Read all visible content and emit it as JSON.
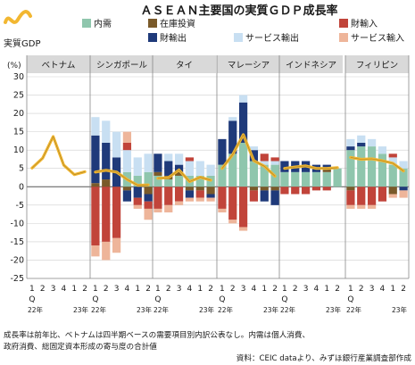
{
  "chart_data": {
    "type": "bar",
    "stacked": true,
    "title": "ＡＳＥＡＮ主要国の実質ＧＤＰ成長率",
    "ylabel": "(%)",
    "ylim": [
      -25,
      30
    ],
    "yticks": [
      30,
      25,
      20,
      15,
      10,
      5,
      0,
      -5,
      -10,
      -15,
      -20,
      -25
    ],
    "grid": true,
    "legend_position": "top",
    "line_legend": "実質GDP",
    "components": [
      {
        "key": "dom",
        "name": "内需",
        "color": "#8fc6ad"
      },
      {
        "key": "inv",
        "name": "在庫投資",
        "color": "#7a5a2a"
      },
      {
        "key": "gx",
        "name": "財輸出",
        "color": "#1f3a7a"
      },
      {
        "key": "sx",
        "name": "サービス輸出",
        "color": "#c8dff2"
      },
      {
        "key": "gm",
        "name": "財輸入",
        "color": "#c1443a"
      },
      {
        "key": "sm",
        "name": "サービス輸入",
        "color": "#eeb59a"
      }
    ],
    "gdp_color": "#f2b731",
    "x_tick_labels": [
      "1",
      "2",
      "3",
      "4",
      "1",
      "2"
    ],
    "x_sub_label": "Q",
    "x_years": [
      "22年",
      "23年"
    ],
    "panels": [
      {
        "country": "ベトナム",
        "gdp": [
          5.1,
          7.8,
          13.7,
          5.9,
          3.3,
          4.1
        ],
        "bars": null
      },
      {
        "country": "シンガポール",
        "gdp": [
          4.0,
          4.5,
          4.0,
          2.0,
          0.4,
          0.5
        ],
        "bars": [
          {
            "dom": 0,
            "inv": 1,
            "gx": 13,
            "sx": 5,
            "gm": -16,
            "sm": -3
          },
          {
            "dom": 0,
            "inv": 2,
            "gx": 10,
            "sx": 6,
            "gm": -15,
            "sm": -5
          },
          {
            "dom": 0,
            "inv": 0,
            "gx": 8,
            "sx": 7,
            "gm": -14,
            "sm": -4
          },
          {
            "dom": 4,
            "inv": -1,
            "gx": -3,
            "sx": 6,
            "gm": 2,
            "sm": 3
          },
          {
            "dom": 3,
            "inv": 0,
            "gx": -3,
            "sx": 5,
            "gm": -2,
            "sm": -1
          },
          {
            "dom": 4,
            "inv": -2,
            "gx": -2,
            "sx": 5,
            "gm": -2,
            "sm": -3
          }
        ]
      },
      {
        "country": "タイ",
        "gdp": [
          2.3,
          2.5,
          4.6,
          1.4,
          2.6,
          1.8
        ],
        "bars": [
          {
            "dom": 3,
            "inv": 1,
            "gx": 5,
            "sx": 0,
            "gm": -6,
            "sm": -1
          },
          {
            "dom": 2,
            "inv": 1,
            "gx": 4,
            "sx": 2,
            "gm": -5,
            "sm": -2
          },
          {
            "dom": 3,
            "inv": 1,
            "gx": 2,
            "sx": 3,
            "gm": -4,
            "sm": -1
          },
          {
            "dom": 3,
            "inv": -1,
            "gx": -2,
            "sx": 4,
            "gm": 1,
            "sm": -1
          },
          {
            "dom": 3,
            "inv": -1,
            "gx": 0,
            "sx": 4,
            "gm": -2,
            "sm": -1
          },
          {
            "dom": 3,
            "inv": -2,
            "gx": -1,
            "sx": 3,
            "gm": 0,
            "sm": -1
          }
        ]
      },
      {
        "country": "マレーシア",
        "gdp": [
          5.0,
          8.8,
          14.2,
          7.1,
          5.6,
          2.9
        ],
        "bars": [
          {
            "dom": 6,
            "inv": 0,
            "gx": 7,
            "sx": 0,
            "gm": -6,
            "sm": -1
          },
          {
            "dom": 9,
            "inv": 0,
            "gx": 9,
            "sx": 1,
            "gm": -9,
            "sm": -1
          },
          {
            "dom": 12,
            "inv": 0,
            "gx": 11,
            "sx": 2,
            "gm": -11,
            "sm": -1
          },
          {
            "dom": 7,
            "inv": -1,
            "gx": 3,
            "sx": 1,
            "gm": -3,
            "sm": 0
          },
          {
            "dom": 6,
            "inv": -1,
            "gx": -3,
            "sx": 1,
            "gm": 2,
            "sm": 0
          },
          {
            "dom": 6,
            "inv": -1,
            "gx": -4,
            "sx": 1,
            "gm": 1,
            "sm": 0
          }
        ]
      },
      {
        "country": "インドネシア",
        "gdp": [
          5.0,
          5.4,
          5.7,
          5.0,
          5.0,
          5.2
        ],
        "bars": [
          {
            "dom": 4,
            "inv": 0,
            "gx": 3,
            "sx": 0,
            "gm": -2,
            "sm": 0
          },
          {
            "dom": 4,
            "inv": 0,
            "gx": 3,
            "sx": 0,
            "gm": -2,
            "sm": 0
          },
          {
            "dom": 4,
            "inv": 0,
            "gx": 3,
            "sx": 0,
            "gm": -2,
            "sm": 0
          },
          {
            "dom": 4,
            "inv": 0,
            "gx": 2,
            "sx": 0,
            "gm": -1,
            "sm": 0
          },
          {
            "dom": 4,
            "inv": 1,
            "gx": 1,
            "sx": 0,
            "gm": -1,
            "sm": 0
          },
          {
            "dom": 5,
            "inv": 0,
            "gx": 0,
            "sx": 0,
            "gm": 0,
            "sm": 0
          }
        ]
      },
      {
        "country": "フィリピン",
        "gdp": [
          8.0,
          7.5,
          7.6,
          7.1,
          6.4,
          4.3
        ],
        "bars": [
          {
            "dom": 10,
            "inv": -1,
            "gx": 1,
            "sx": 2,
            "gm": -4,
            "sm": -1
          },
          {
            "dom": 11,
            "inv": 0,
            "gx": 1,
            "sx": 2,
            "gm": -5,
            "sm": -1
          },
          {
            "dom": 11,
            "inv": 0,
            "gx": 0,
            "sx": 2,
            "gm": -5,
            "sm": -1
          },
          {
            "dom": 9,
            "inv": 0,
            "gx": 0,
            "sx": 2,
            "gm": -4,
            "sm": 0
          },
          {
            "dom": 6,
            "inv": -2,
            "gx": 0,
            "sx": 2,
            "gm": 1,
            "sm": -1
          },
          {
            "dom": 5,
            "inv": 0,
            "gx": -1,
            "sx": 2,
            "gm": 0,
            "sm": -2
          }
        ]
      }
    ]
  },
  "notes": {
    "line1": "成長率は前年比、ベトナムは四半期ベースの需要項目別内訳公表なし。内需は個人消費、",
    "line2": "政府消費、総固定資本形成の寄与度の合計値",
    "source": "資料：CEIC dataより、みずほ銀行産業調査部作成"
  }
}
